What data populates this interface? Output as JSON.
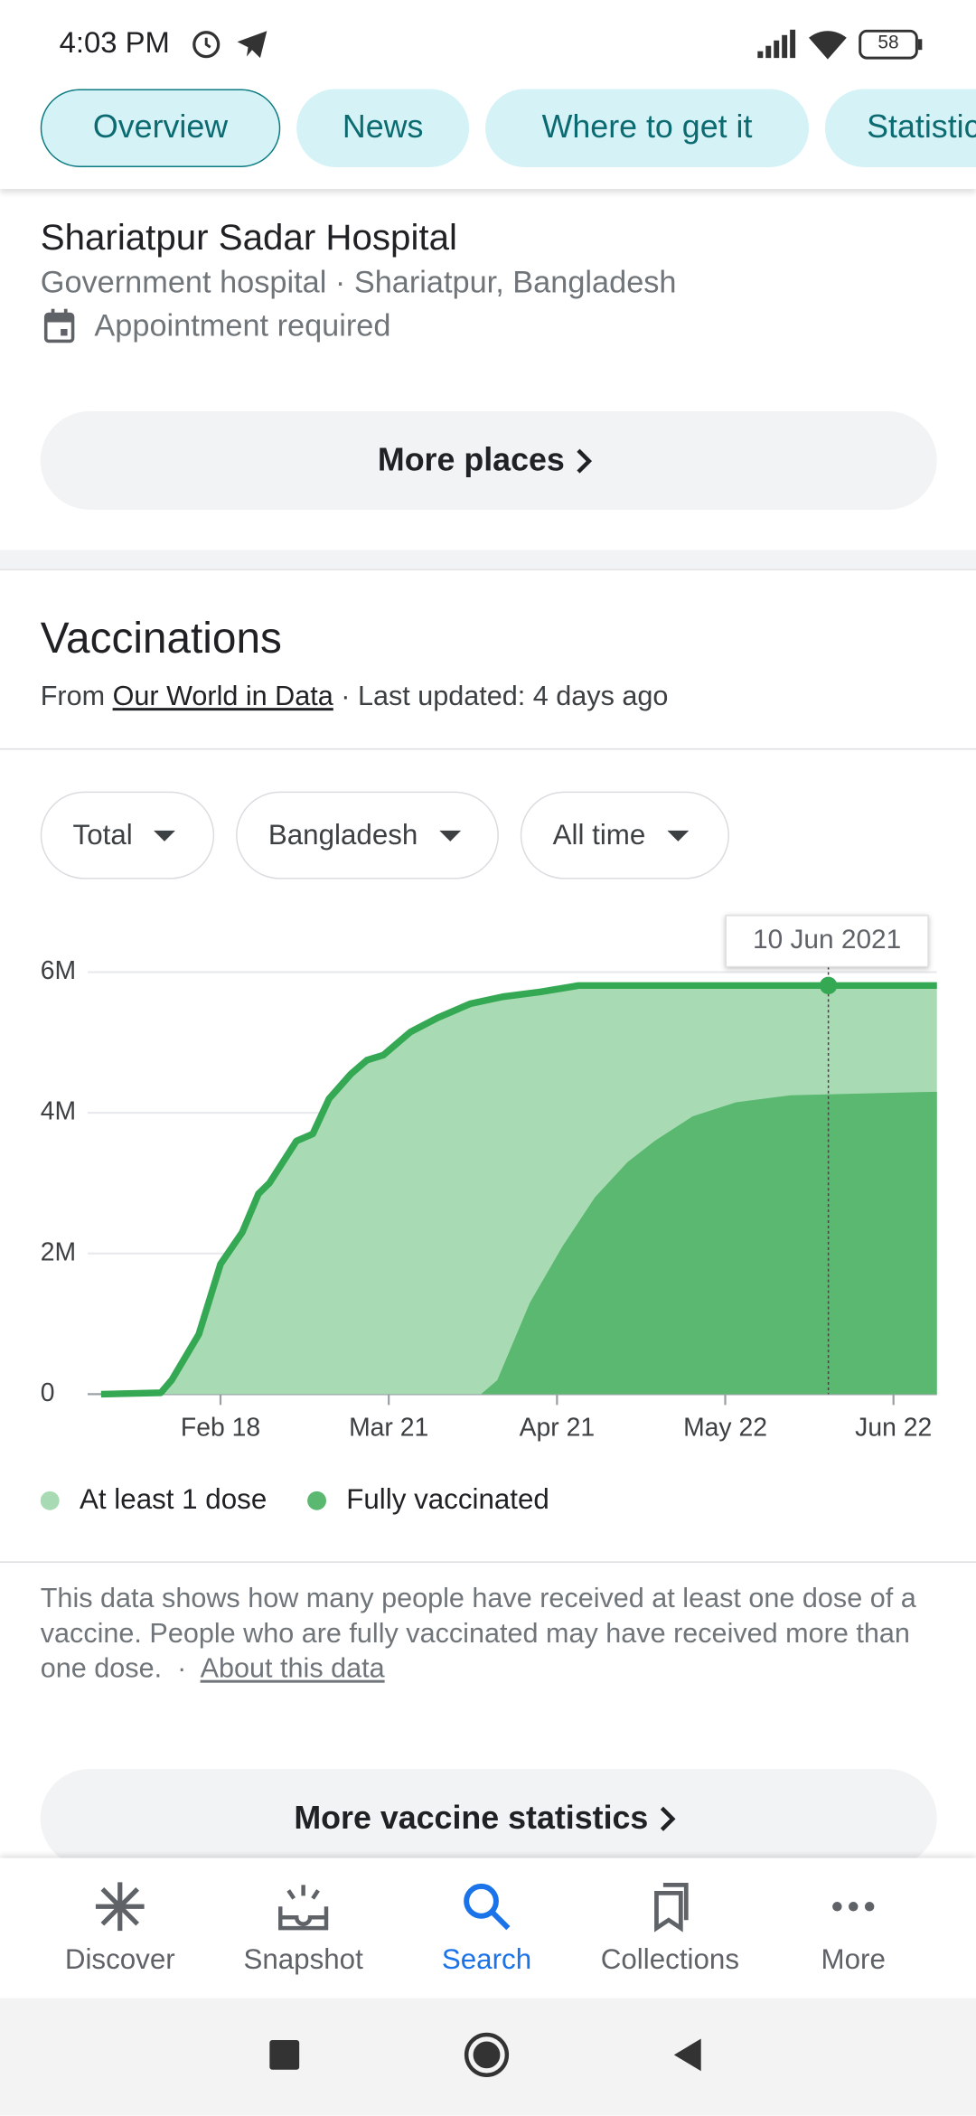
{
  "status_bar": {
    "time": "4:03 PM",
    "battery": "58"
  },
  "tabs": [
    "Overview",
    "News",
    "Where to get it",
    "Statistics"
  ],
  "place": {
    "name": "Shariatpur Sadar Hospital",
    "subtitle": "Government hospital · Shariatpur, Bangladesh",
    "note": "Appointment required"
  },
  "more_places": "More places",
  "vaccinations": {
    "title": "Vaccinations",
    "source_prefix": "From",
    "source_link": "Our World in Data",
    "updated": "· Last updated: 4 days ago"
  },
  "filters": [
    "Total",
    "Bangladesh",
    "All time"
  ],
  "chart_data": {
    "type": "area",
    "xlim": [
      "2021-01-27",
      "2021-06-30"
    ],
    "xticks": [
      {
        "value": "2021-02-18",
        "label": "Feb 18"
      },
      {
        "value": "2021-03-21",
        "label": "Mar 21"
      },
      {
        "value": "2021-04-21",
        "label": "Apr 21"
      },
      {
        "value": "2021-05-22",
        "label": "May 22"
      },
      {
        "value": "2021-06-22",
        "label": "Jun 22"
      }
    ],
    "ylim": [
      0,
      6000000
    ],
    "yticks": [
      0,
      {
        "value": 2000000,
        "label": "2M"
      },
      {
        "value": 4000000,
        "label": "4M"
      },
      {
        "value": 6000000,
        "label": "6M"
      }
    ],
    "grid": true,
    "series": [
      {
        "name": "At least 1 dose",
        "color": "#a8dbb3",
        "line_color": "#34a853",
        "x": [
          "2021-01-27",
          "2021-02-07",
          "2021-02-09",
          "2021-02-14",
          "2021-02-18",
          "2021-02-22",
          "2021-02-25",
          "2021-02-27",
          "2021-03-04",
          "2021-03-07",
          "2021-03-10",
          "2021-03-14",
          "2021-03-17",
          "2021-03-20",
          "2021-03-25",
          "2021-03-30",
          "2021-04-05",
          "2021-04-11",
          "2021-04-18",
          "2021-04-25",
          "2021-06-10",
          "2021-06-30"
        ],
        "values": [
          0,
          20000,
          200000,
          850000,
          1850000,
          2300000,
          2850000,
          3000000,
          3600000,
          3700000,
          4200000,
          4550000,
          4750000,
          4820000,
          5150000,
          5350000,
          5550000,
          5650000,
          5720000,
          5810000,
          5810000,
          5810000
        ]
      },
      {
        "name": "Fully vaccinated",
        "color": "#5bb870",
        "x": [
          "2021-04-07",
          "2021-04-10",
          "2021-04-16",
          "2021-04-22",
          "2021-04-28",
          "2021-05-04",
          "2021-05-09",
          "2021-05-16",
          "2021-05-24",
          "2021-06-03",
          "2021-06-30"
        ],
        "values": [
          0,
          200000,
          1300000,
          2100000,
          2800000,
          3300000,
          3600000,
          3950000,
          4150000,
          4250000,
          4300000
        ]
      }
    ],
    "tooltip": {
      "x": "2021-06-10",
      "label": "10 Jun 2021"
    }
  },
  "disclaimer": {
    "text": "This data shows how many people have received at least one dose of a vaccine. People who are fully vaccinated may have received more than one dose.",
    "separator": "·",
    "link": "About this data"
  },
  "more_stats": "More vaccine statistics",
  "nav": [
    "Discover",
    "Snapshot",
    "Search",
    "Collections",
    "More"
  ]
}
